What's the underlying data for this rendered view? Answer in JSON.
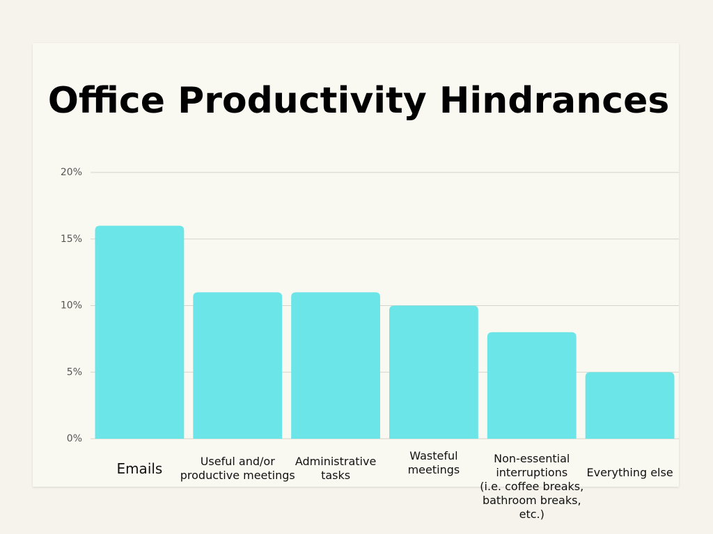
{
  "chart_data": {
    "type": "bar",
    "title": "Office Productivity Hindrances",
    "categories": [
      "Emails",
      "Useful and/or\nproductive meetings",
      "Administrative\ntasks",
      "Wasteful\nmeetings",
      "Non-essential\ninterruptions\n(i.e. coffee breaks,\nbathroom breaks, etc.)",
      "Everything else"
    ],
    "values": [
      16,
      11,
      11,
      10,
      8,
      5
    ],
    "color": "#6ce5e8",
    "ylim": [
      0,
      20
    ],
    "yticks": [
      {
        "value": 0,
        "label": "0%"
      },
      {
        "value": 5,
        "label": "5%"
      },
      {
        "value": 10,
        "label": "10%"
      },
      {
        "value": 15,
        "label": "15%"
      },
      {
        "value": 20,
        "label": "20%"
      }
    ],
    "grid": true
  }
}
